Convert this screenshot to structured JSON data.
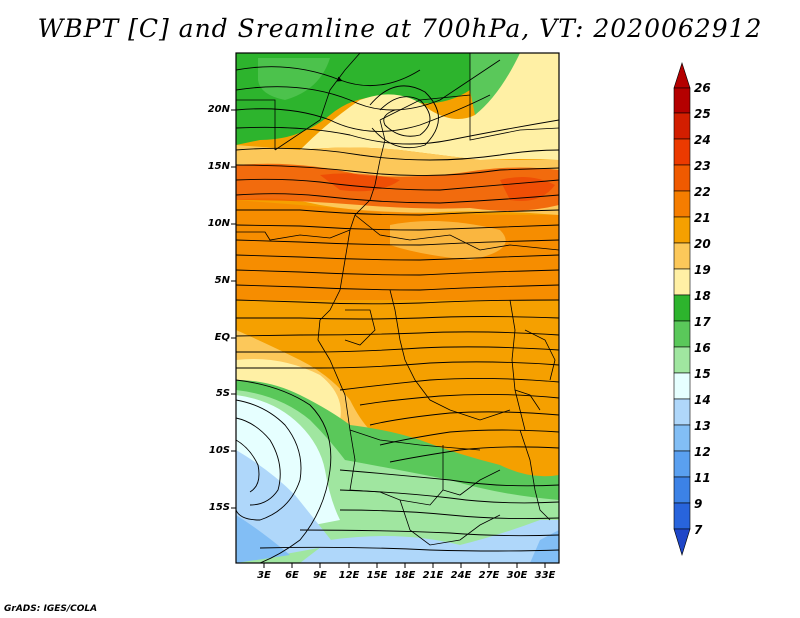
{
  "title": "WBPT [C] and Sreamline at 700hPa, VT: 2020062912",
  "credit": "GrADS: IGES/COLA",
  "lat_labels": [
    "20N",
    "15N",
    "10N",
    "5N",
    "EQ",
    "5S",
    "10S",
    "15S"
  ],
  "lon_labels": [
    "3E",
    "6E",
    "9E",
    "12E",
    "15E",
    "18E",
    "21E",
    "24E",
    "27E",
    "30E",
    "33E"
  ],
  "colorbar": {
    "labels": [
      "26",
      "25",
      "24",
      "23",
      "22",
      "21",
      "20",
      "19",
      "18",
      "17",
      "16",
      "15",
      "14",
      "13",
      "12",
      "11",
      "9",
      "7"
    ],
    "colors": [
      "#b40000",
      "#d21e00",
      "#ec3a00",
      "#f05a00",
      "#f57d00",
      "#f5a000",
      "#fcc85a",
      "#fff0a5",
      "#2db42d",
      "#5ac85a",
      "#a0e6a0",
      "#e6ffff",
      "#afd7fa",
      "#82bef5",
      "#5aa0f0",
      "#3c82e6",
      "#2864dc",
      "#1e46c8"
    ]
  },
  "legend": {
    "variable": "Wet-bulb potential temperature",
    "units": "C",
    "level": "700hPa",
    "valid_time": "2020062912"
  }
}
